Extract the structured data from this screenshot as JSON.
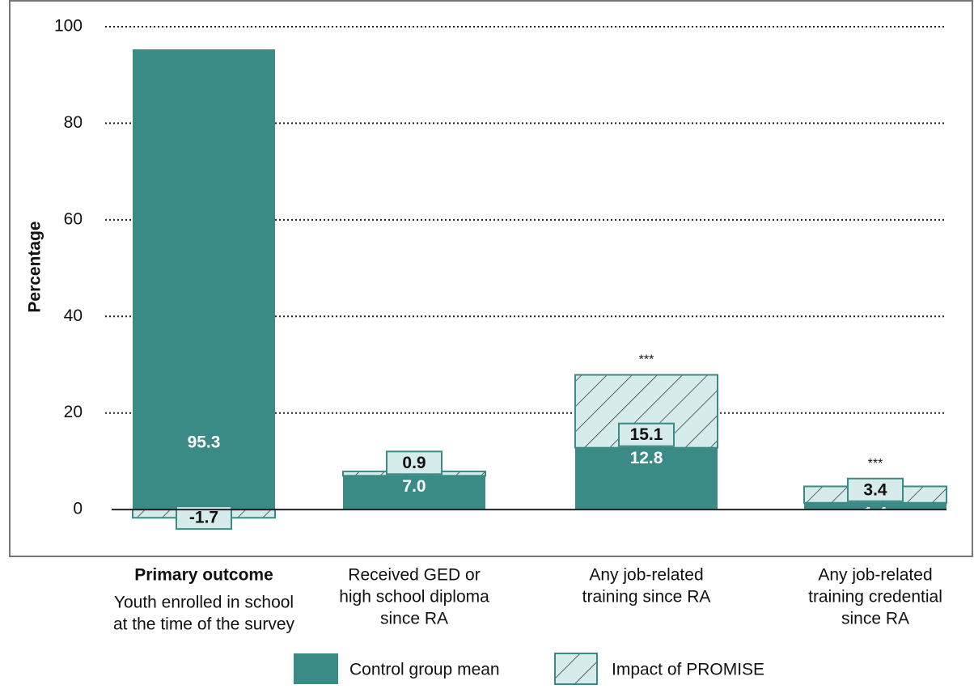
{
  "chart_data": {
    "type": "bar",
    "y_axis_label": "Percentage",
    "categories": [
      [
        "Youth enrolled in school",
        "at the time of the survey"
      ],
      [
        "Received GED or",
        "high school diploma",
        "since RA"
      ],
      [
        "Any job-related",
        "training since RA"
      ],
      [
        "Any job-related",
        "training credential",
        "since RA"
      ]
    ],
    "primary_label": "Primary outcome",
    "series": [
      {
        "name": "Control group mean",
        "color": "#3a8a86",
        "values": [
          95.3,
          7.0,
          12.8,
          1.4
        ],
        "value_labels": [
          "95.3",
          "7.0",
          "12.8",
          "1.4"
        ]
      },
      {
        "name": "Impact of PROMISE",
        "color": "#d6ecea",
        "values": [
          -1.7,
          0.9,
          15.1,
          3.4
        ],
        "value_labels": [
          "-1.7",
          "0.9",
          "15.1",
          "3.4"
        ]
      }
    ],
    "significance": [
      null,
      null,
      "***",
      "***"
    ],
    "ylim": [
      -4,
      100
    ],
    "yticks": [
      0,
      20,
      40,
      60,
      80,
      100
    ],
    "grid": true
  }
}
